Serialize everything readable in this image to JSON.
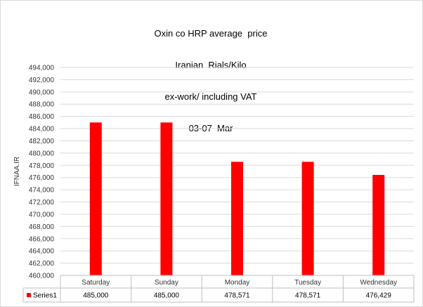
{
  "chart_data": {
    "type": "bar",
    "title_lines": [
      "Oxin co HRP average  price",
      "Iranian  Rials/Kilo",
      "ex-work/ including VAT",
      "03-07  Mar"
    ],
    "ylabel": "IFNAA.IR",
    "categories": [
      "Saturday",
      "Sunday",
      "Monday",
      "Tuesday",
      "Wednesday"
    ],
    "series": [
      {
        "name": "Series1",
        "values": [
          485000,
          485000,
          478571,
          478571,
          476429
        ],
        "display_values": [
          "485,000",
          "485,000",
          "478,571",
          "478,571",
          "476,429"
        ],
        "color": "#ff0000"
      }
    ],
    "ylim": [
      460000,
      494000
    ],
    "y_step": 2000,
    "grid": true,
    "legend": "data-table"
  }
}
